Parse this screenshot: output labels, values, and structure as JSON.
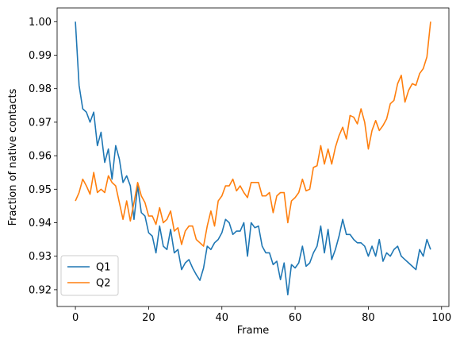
{
  "chart_data": {
    "type": "line",
    "xlabel": "Frame",
    "ylabel": "Fraction of native contacts",
    "xlim": [
      -5,
      102
    ],
    "ylim": [
      0.915,
      1.0041
    ],
    "xticks": [
      0,
      20,
      40,
      60,
      80,
      100
    ],
    "yticks": [
      0.92,
      0.93,
      0.94,
      0.95,
      0.96,
      0.97,
      0.98,
      0.99,
      1.0
    ],
    "ytick_labels": [
      "0.92",
      "0.93",
      "0.94",
      "0.95",
      "0.96",
      "0.97",
      "0.98",
      "0.99",
      "1.00"
    ],
    "grid": false,
    "legend_position": "lower-left",
    "series": [
      {
        "name": "Q1",
        "color": "#1f77b4",
        "values": [
          1.0,
          0.981,
          0.974,
          0.973,
          0.97,
          0.973,
          0.963,
          0.967,
          0.958,
          0.962,
          0.953,
          0.963,
          0.959,
          0.952,
          0.954,
          0.951,
          0.941,
          0.951,
          0.943,
          0.942,
          0.937,
          0.936,
          0.931,
          0.939,
          0.933,
          0.932,
          0.938,
          0.931,
          0.932,
          0.926,
          0.928,
          0.929,
          0.9265,
          0.9245,
          0.9228,
          0.9265,
          0.933,
          0.932,
          0.934,
          0.935,
          0.937,
          0.941,
          0.94,
          0.9365,
          0.9375,
          0.9375,
          0.94,
          0.93,
          0.94,
          0.9385,
          0.939,
          0.933,
          0.931,
          0.931,
          0.9275,
          0.9285,
          0.923,
          0.928,
          0.9185,
          0.9275,
          0.9265,
          0.928,
          0.933,
          0.927,
          0.928,
          0.931,
          0.933,
          0.939,
          0.931,
          0.938,
          0.929,
          0.932,
          0.936,
          0.941,
          0.9365,
          0.9365,
          0.935,
          0.934,
          0.934,
          0.933,
          0.93,
          0.933,
          0.93,
          0.935,
          0.9285,
          0.931,
          0.93,
          0.932,
          0.933,
          0.93,
          0.929,
          0.928,
          0.927,
          0.926,
          0.932,
          0.93,
          0.935,
          0.932
        ]
      },
      {
        "name": "Q2",
        "color": "#ff7f0e",
        "values": [
          0.9465,
          0.949,
          0.953,
          0.951,
          0.9485,
          0.955,
          0.949,
          0.95,
          0.949,
          0.954,
          0.952,
          0.951,
          0.946,
          0.941,
          0.9465,
          0.9405,
          0.946,
          0.952,
          0.948,
          0.946,
          0.942,
          0.942,
          0.9395,
          0.9445,
          0.94,
          0.941,
          0.9435,
          0.9375,
          0.9385,
          0.9335,
          0.9375,
          0.939,
          0.939,
          0.935,
          0.934,
          0.933,
          0.939,
          0.9435,
          0.939,
          0.9465,
          0.948,
          0.951,
          0.951,
          0.953,
          0.9495,
          0.951,
          0.949,
          0.9475,
          0.952,
          0.952,
          0.952,
          0.948,
          0.948,
          0.949,
          0.943,
          0.948,
          0.949,
          0.949,
          0.94,
          0.9465,
          0.9475,
          0.949,
          0.953,
          0.9495,
          0.95,
          0.9565,
          0.957,
          0.963,
          0.9575,
          0.962,
          0.9575,
          0.9625,
          0.966,
          0.9685,
          0.965,
          0.972,
          0.9715,
          0.9695,
          0.974,
          0.97,
          0.962,
          0.9675,
          0.9705,
          0.9675,
          0.969,
          0.971,
          0.9755,
          0.9765,
          0.9815,
          0.984,
          0.976,
          0.9795,
          0.9815,
          0.981,
          0.9845,
          0.986,
          0.9895,
          1.0
        ]
      }
    ]
  }
}
